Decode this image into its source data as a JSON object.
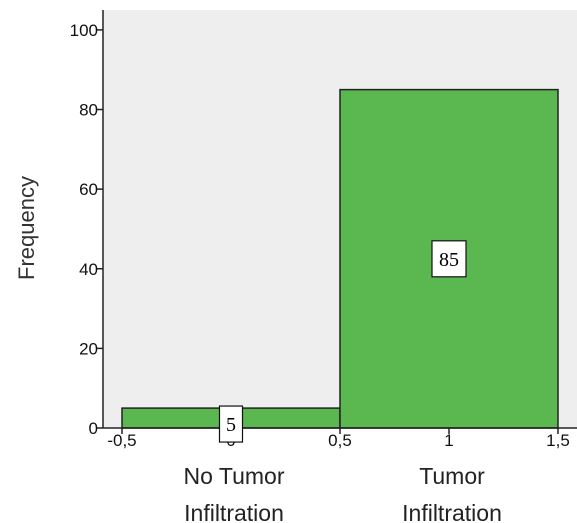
{
  "chart_data": {
    "type": "bar",
    "title": "",
    "xlabel": "",
    "ylabel": "Frequency",
    "bins": [
      {
        "x0": -0.5,
        "x1": 0.5,
        "value": 5,
        "data_label": "5"
      },
      {
        "x0": 0.5,
        "x1": 1.5,
        "value": 85,
        "data_label": "85"
      }
    ],
    "category_labels": [
      {
        "at": 0,
        "lines": [
          "No Tumor",
          "Infiltration"
        ]
      },
      {
        "at": 1,
        "lines": [
          "Tumor",
          "Infiltration"
        ]
      }
    ],
    "x_ticks": [
      -0.5,
      0,
      0.5,
      1,
      1.5
    ],
    "x_tick_labels": [
      "-0,5",
      "0",
      "0,5",
      "1",
      "1,5"
    ],
    "y_ticks": [
      0,
      20,
      40,
      60,
      80,
      100
    ],
    "y_tick_labels": [
      "0",
      "20",
      "40",
      "60",
      "80",
      "100"
    ],
    "xlim": [
      -0.5,
      1.5
    ],
    "ylim": [
      0,
      105
    ],
    "grid": false,
    "colors": {
      "bar_fill": "#5bb74f",
      "bar_stroke": "#222222",
      "plot_background": "#eeeeee"
    }
  }
}
